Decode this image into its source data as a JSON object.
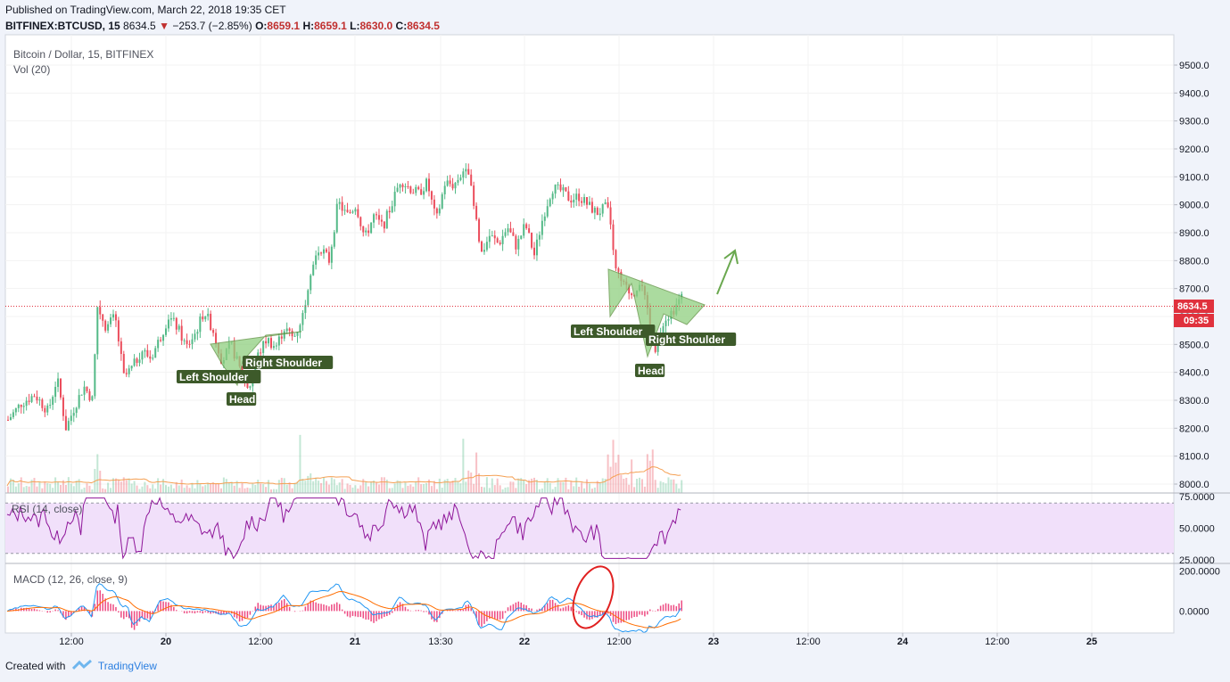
{
  "header": {
    "published": "Published on TradingView.com, March 22, 2018 19:35 CET",
    "symbol": "BITFINEX:BTCUSD, 15",
    "last": "8634.5",
    "change_arrow": "▼",
    "change": "−253.7 (−2.85%)",
    "o_label": "O:",
    "o_value": "8659.1",
    "h_label": "H:",
    "h_value": "8659.1",
    "l_label": "L:",
    "l_value": "8630.0",
    "c_label": "C:",
    "c_value": "8634.5"
  },
  "chart_data": {
    "type": "candlestick",
    "title": "Bitcoin / Dollar, 15, BITFINEX",
    "volume_label": "Vol (20)",
    "x_tick_labels": [
      "12:00",
      "20",
      "12:00",
      "21",
      "13:30",
      "22",
      "12:00",
      "23",
      "12:00",
      "24",
      "12:00",
      "25"
    ],
    "y_tick_labels": [
      "9500.0",
      "9400.0",
      "9300.0",
      "9200.0",
      "9100.0",
      "9000.0",
      "8900.0",
      "8800.0",
      "8700.0",
      "8600.0",
      "8500.0",
      "8400.0",
      "8300.0",
      "8200.0",
      "8100.0",
      "8000.0"
    ],
    "ylim": [
      7970,
      9550
    ],
    "last_price": "8634.5",
    "countdown": "09:35",
    "price_path": [
      [
        0,
        8230
      ],
      [
        15,
        8290
      ],
      [
        30,
        8320
      ],
      [
        45,
        8260
      ],
      [
        55,
        8380
      ],
      [
        65,
        8200
      ],
      [
        75,
        8280
      ],
      [
        85,
        8350
      ],
      [
        95,
        8300
      ],
      [
        100,
        8640
      ],
      [
        110,
        8560
      ],
      [
        120,
        8600
      ],
      [
        130,
        8380
      ],
      [
        140,
        8420
      ],
      [
        150,
        8480
      ],
      [
        160,
        8450
      ],
      [
        170,
        8520
      ],
      [
        180,
        8600
      ],
      [
        190,
        8560
      ],
      [
        200,
        8490
      ],
      [
        210,
        8540
      ],
      [
        220,
        8620
      ],
      [
        230,
        8550
      ],
      [
        240,
        8440
      ],
      [
        250,
        8500
      ],
      [
        260,
        8410
      ],
      [
        270,
        8340
      ],
      [
        280,
        8460
      ],
      [
        290,
        8520
      ],
      [
        300,
        8490
      ],
      [
        310,
        8560
      ],
      [
        320,
        8520
      ],
      [
        330,
        8600
      ],
      [
        340,
        8780
      ],
      [
        350,
        8850
      ],
      [
        360,
        8800
      ],
      [
        370,
        9010
      ],
      [
        380,
        8960
      ],
      [
        390,
        9000
      ],
      [
        400,
        8880
      ],
      [
        410,
        8960
      ],
      [
        420,
        8920
      ],
      [
        430,
        9000
      ],
      [
        440,
        9090
      ],
      [
        450,
        9060
      ],
      [
        460,
        9040
      ],
      [
        470,
        9080
      ],
      [
        480,
        8940
      ],
      [
        490,
        9080
      ],
      [
        500,
        9070
      ],
      [
        510,
        9120
      ],
      [
        515,
        9160
      ],
      [
        520,
        9030
      ],
      [
        525,
        8940
      ],
      [
        530,
        8820
      ],
      [
        540,
        8890
      ],
      [
        550,
        8860
      ],
      [
        560,
        8920
      ],
      [
        570,
        8850
      ],
      [
        580,
        8930
      ],
      [
        590,
        8820
      ],
      [
        600,
        8960
      ],
      [
        610,
        9060
      ],
      [
        620,
        9050
      ],
      [
        630,
        9020
      ],
      [
        640,
        9030
      ],
      [
        650,
        9000
      ],
      [
        660,
        8970
      ],
      [
        670,
        8990
      ],
      [
        675,
        8960
      ],
      [
        680,
        8770
      ],
      [
        690,
        8710
      ],
      [
        700,
        8680
      ],
      [
        710,
        8720
      ],
      [
        715,
        8640
      ],
      [
        725,
        8480
      ],
      [
        735,
        8590
      ],
      [
        745,
        8620
      ],
      [
        755,
        8670
      ],
      [
        760,
        8634
      ]
    ],
    "annotations": [
      {
        "text": "Left Shoulder",
        "pattern": "left"
      },
      {
        "text": "Head",
        "pattern": "left"
      },
      {
        "text": "Right Shoulder",
        "pattern": "left"
      },
      {
        "text": "Left Shoulder",
        "pattern": "right"
      },
      {
        "text": "Head",
        "pattern": "right"
      },
      {
        "text": "Right Shoulder",
        "pattern": "right"
      }
    ]
  },
  "rsi": {
    "label": "RSI (14, close)",
    "ticks": [
      "75.0000",
      "50.0000",
      "25.0000"
    ],
    "band": [
      30,
      70
    ],
    "ylim": [
      22,
      78
    ]
  },
  "macd": {
    "label": "MACD (12, 26, close, 9)",
    "ticks": [
      "200.0000",
      "0.0000"
    ],
    "ylim": [
      -110,
      230
    ]
  },
  "colors": {
    "up": "#53b987",
    "down": "#eb4d5c",
    "pattern_fill": "#8fcf80",
    "label_bg": "#3d5a2a",
    "rsi_line": "#8e1599",
    "rsi_band": "#f1e0fa",
    "macd": "#2196f3",
    "signal": "#ff6d00",
    "price_line": "#e0313d"
  },
  "footer": {
    "created_with": "Created with",
    "brand": "TradingView"
  }
}
